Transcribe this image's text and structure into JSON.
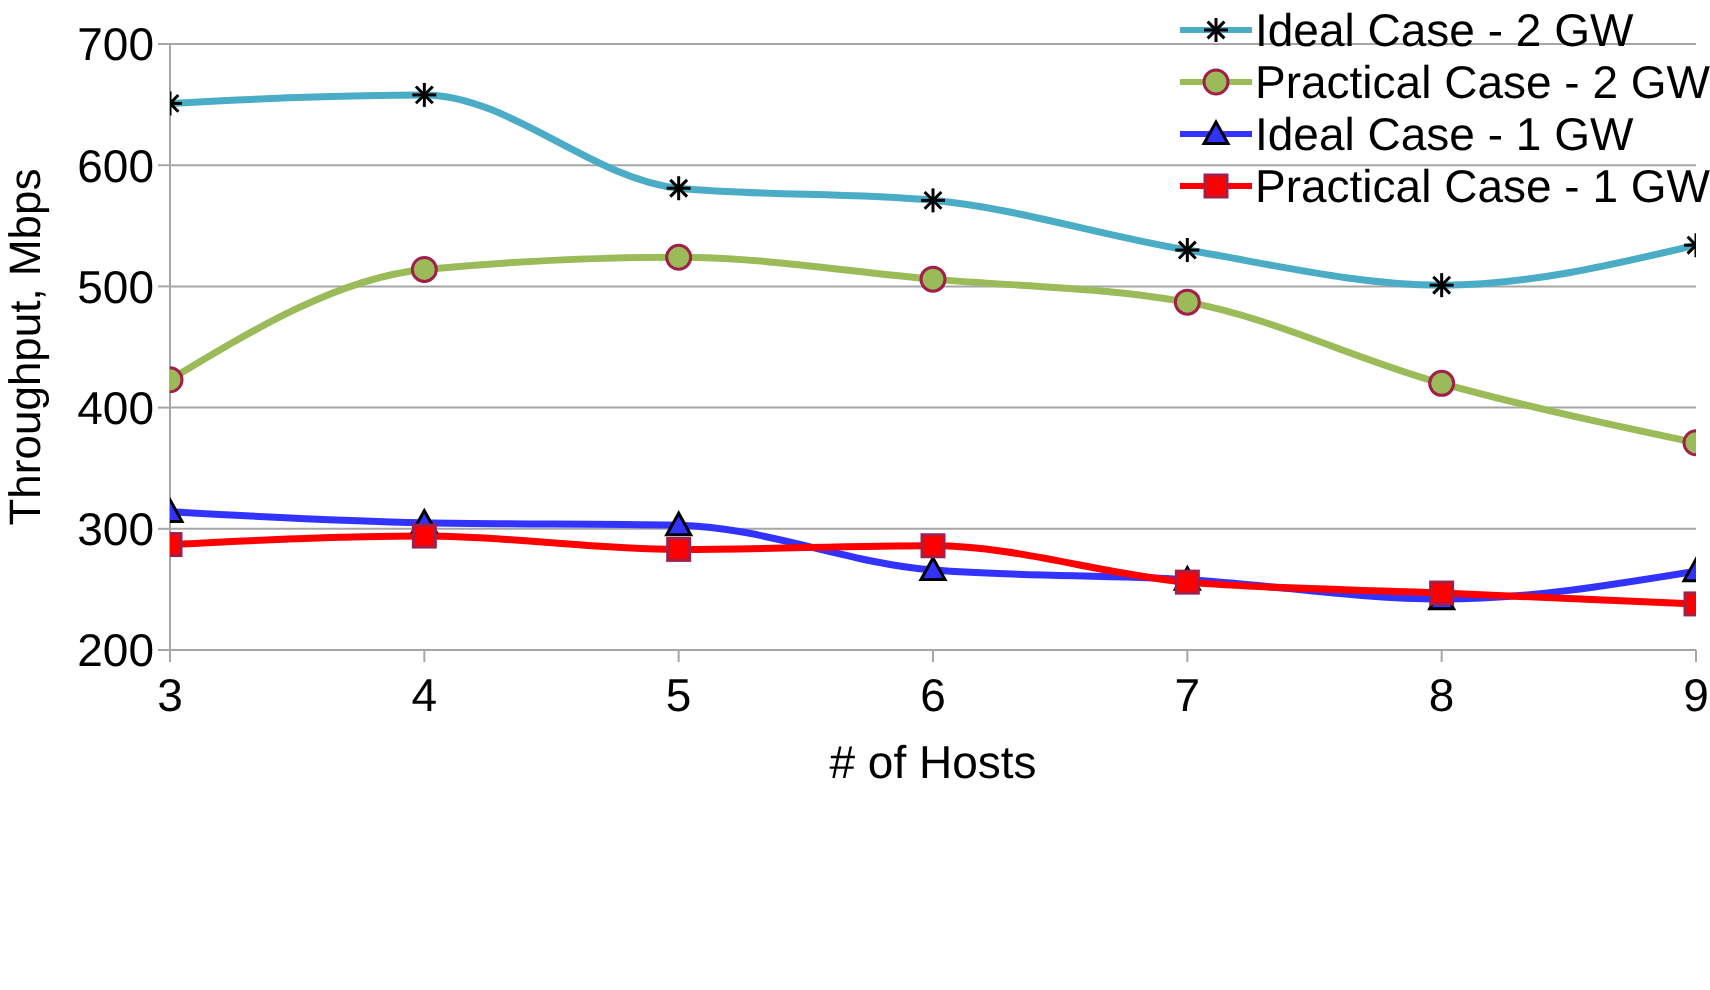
{
  "chart_data": {
    "type": "line",
    "xlabel": "# of Hosts",
    "ylabel": "Throughput, Mbps",
    "x": [
      3,
      4,
      5,
      6,
      7,
      8,
      9
    ],
    "series": [
      {
        "name": "Ideal Case - 2 GW",
        "color": "#4bacc6",
        "marker": "cross",
        "values": [
          651,
          658,
          581,
          571,
          530,
          501,
          534
        ]
      },
      {
        "name": "Practical Case - 2 GW",
        "color": "#9bbb59",
        "marker": "circle",
        "values": [
          423,
          514,
          524,
          506,
          487,
          420,
          371
        ]
      },
      {
        "name": "Ideal Case - 1 GW",
        "color": "#3333ff",
        "marker": "triangle",
        "values": [
          314,
          305,
          303,
          266,
          258,
          242,
          265
        ]
      },
      {
        "name": "Practical Case - 1 GW",
        "color": "#ff0000",
        "marker": "square",
        "values": [
          287,
          294,
          283,
          286,
          256,
          247,
          238
        ]
      }
    ],
    "xlim": [
      3,
      9
    ],
    "xticks": [
      3,
      4,
      5,
      6,
      7,
      8,
      9
    ],
    "ylim": [
      200,
      700
    ],
    "yticks": [
      200,
      300,
      400,
      500,
      600,
      700
    ],
    "grid": "y",
    "legend": "top right",
    "line_style": "solid"
  }
}
